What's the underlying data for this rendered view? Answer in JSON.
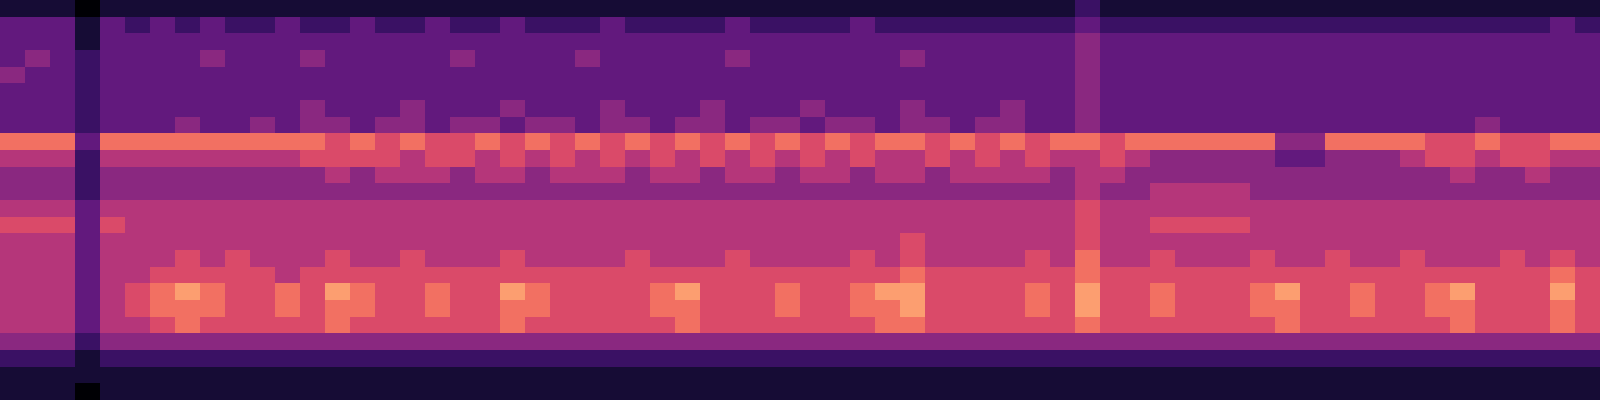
{
  "chart_data": {
    "type": "heatmap",
    "tick_labels": false,
    "zlim": [
      0,
      10
    ],
    "values": [
      [
        1,
        1,
        1,
        0,
        1,
        1,
        1,
        1,
        1,
        1,
        1,
        1,
        1,
        1,
        1,
        1,
        1,
        1,
        1,
        1,
        1,
        1,
        1,
        1,
        1,
        1,
        1,
        1,
        1,
        1,
        1,
        1,
        1,
        1,
        1,
        1,
        1,
        1,
        1,
        1,
        1,
        1,
        1,
        2,
        1,
        1,
        1,
        1,
        1,
        1,
        1,
        1,
        1,
        1,
        1,
        1,
        1,
        1,
        1,
        1,
        1,
        1,
        1,
        1
      ],
      [
        3,
        3,
        3,
        1,
        3,
        2,
        3,
        2,
        3,
        2,
        2,
        3,
        2,
        2,
        3,
        2,
        2,
        3,
        2,
        2,
        3,
        2,
        2,
        2,
        3,
        2,
        2,
        2,
        2,
        3,
        2,
        2,
        2,
        2,
        3,
        2,
        2,
        2,
        2,
        2,
        2,
        2,
        2,
        3,
        2,
        2,
        2,
        2,
        2,
        2,
        2,
        2,
        2,
        2,
        2,
        2,
        2,
        2,
        2,
        2,
        2,
        2,
        3,
        2
      ],
      [
        3,
        3,
        3,
        1,
        3,
        3,
        3,
        3,
        3,
        3,
        3,
        3,
        3,
        3,
        3,
        3,
        3,
        3,
        3,
        3,
        3,
        3,
        3,
        3,
        3,
        3,
        3,
        3,
        3,
        3,
        3,
        3,
        3,
        3,
        3,
        3,
        3,
        3,
        3,
        3,
        3,
        3,
        3,
        4,
        3,
        3,
        3,
        3,
        3,
        3,
        3,
        3,
        3,
        3,
        3,
        3,
        3,
        3,
        3,
        3,
        3,
        3,
        3,
        3
      ],
      [
        3,
        4,
        3,
        2,
        3,
        3,
        3,
        3,
        4,
        3,
        3,
        3,
        4,
        3,
        3,
        3,
        3,
        3,
        4,
        3,
        3,
        3,
        3,
        4,
        3,
        3,
        3,
        3,
        3,
        4,
        3,
        3,
        3,
        3,
        3,
        3,
        4,
        3,
        3,
        3,
        3,
        3,
        3,
        4,
        3,
        3,
        3,
        3,
        3,
        3,
        3,
        3,
        3,
        3,
        3,
        3,
        3,
        3,
        3,
        3,
        3,
        3,
        3,
        3
      ],
      [
        4,
        3,
        3,
        2,
        3,
        3,
        3,
        3,
        3,
        3,
        3,
        3,
        3,
        3,
        3,
        3,
        3,
        3,
        3,
        3,
        3,
        3,
        3,
        3,
        3,
        3,
        3,
        3,
        3,
        3,
        3,
        3,
        3,
        3,
        3,
        3,
        3,
        3,
        3,
        3,
        3,
        3,
        3,
        4,
        3,
        3,
        3,
        3,
        3,
        3,
        3,
        3,
        3,
        3,
        3,
        3,
        3,
        3,
        3,
        3,
        3,
        3,
        3,
        3
      ],
      [
        3,
        3,
        3,
        2,
        3,
        3,
        3,
        3,
        3,
        3,
        3,
        3,
        3,
        3,
        3,
        3,
        3,
        3,
        3,
        3,
        3,
        3,
        3,
        3,
        3,
        3,
        3,
        3,
        3,
        3,
        3,
        3,
        3,
        3,
        3,
        3,
        3,
        3,
        3,
        3,
        3,
        3,
        3,
        4,
        3,
        3,
        3,
        3,
        3,
        3,
        3,
        3,
        3,
        3,
        3,
        3,
        3,
        3,
        3,
        3,
        3,
        3,
        3,
        3
      ],
      [
        3,
        3,
        3,
        2,
        3,
        3,
        3,
        3,
        3,
        3,
        3,
        3,
        4,
        3,
        3,
        3,
        4,
        3,
        3,
        3,
        4,
        3,
        3,
        3,
        4,
        3,
        3,
        3,
        4,
        3,
        3,
        3,
        4,
        3,
        3,
        3,
        4,
        3,
        3,
        3,
        4,
        3,
        3,
        4,
        3,
        3,
        3,
        3,
        3,
        3,
        3,
        3,
        3,
        3,
        3,
        3,
        3,
        3,
        3,
        3,
        3,
        3,
        3,
        3
      ],
      [
        3,
        3,
        3,
        2,
        3,
        3,
        3,
        4,
        3,
        3,
        4,
        3,
        4,
        4,
        3,
        4,
        4,
        3,
        4,
        4,
        3,
        4,
        4,
        3,
        4,
        4,
        3,
        4,
        4,
        3,
        4,
        4,
        3,
        4,
        4,
        3,
        4,
        4,
        3,
        4,
        4,
        3,
        3,
        4,
        3,
        3,
        3,
        3,
        3,
        3,
        3,
        3,
        3,
        3,
        3,
        3,
        3,
        3,
        3,
        4,
        3,
        3,
        3,
        3
      ],
      [
        7,
        7,
        7,
        3,
        7,
        7,
        7,
        7,
        7,
        7,
        7,
        7,
        7,
        6,
        7,
        6,
        7,
        6,
        6,
        7,
        6,
        7,
        6,
        7,
        6,
        7,
        6,
        7,
        6,
        7,
        6,
        7,
        6,
        7,
        6,
        7,
        7,
        6,
        7,
        6,
        7,
        6,
        7,
        7,
        6,
        7,
        7,
        7,
        7,
        7,
        7,
        4,
        4,
        7,
        7,
        7,
        7,
        6,
        6,
        7,
        6,
        6,
        7,
        7
      ],
      [
        5,
        5,
        5,
        2,
        5,
        5,
        5,
        5,
        5,
        5,
        5,
        5,
        6,
        6,
        6,
        6,
        5,
        6,
        6,
        5,
        6,
        5,
        6,
        5,
        6,
        5,
        6,
        5,
        6,
        5,
        6,
        5,
        6,
        5,
        6,
        5,
        5,
        6,
        5,
        6,
        5,
        6,
        5,
        5,
        6,
        5,
        4,
        4,
        4,
        4,
        4,
        3,
        3,
        4,
        4,
        4,
        5,
        6,
        6,
        5,
        6,
        6,
        5,
        5
      ],
      [
        4,
        4,
        4,
        2,
        4,
        4,
        4,
        4,
        4,
        4,
        4,
        4,
        4,
        5,
        4,
        5,
        5,
        5,
        4,
        5,
        5,
        4,
        5,
        5,
        5,
        4,
        5,
        5,
        4,
        5,
        5,
        4,
        5,
        5,
        4,
        5,
        5,
        4,
        5,
        5,
        5,
        5,
        4,
        5,
        5,
        4,
        4,
        4,
        4,
        4,
        4,
        4,
        4,
        4,
        4,
        4,
        4,
        4,
        5,
        4,
        4,
        5,
        4,
        4
      ],
      [
        4,
        4,
        4,
        2,
        4,
        4,
        4,
        4,
        4,
        4,
        4,
        4,
        4,
        4,
        4,
        4,
        4,
        4,
        4,
        4,
        4,
        4,
        4,
        4,
        4,
        4,
        4,
        4,
        4,
        4,
        4,
        4,
        4,
        4,
        4,
        4,
        4,
        4,
        4,
        4,
        4,
        4,
        4,
        5,
        4,
        4,
        5,
        5,
        5,
        5,
        4,
        4,
        4,
        4,
        4,
        4,
        4,
        4,
        4,
        4,
        4,
        4,
        4,
        4
      ],
      [
        5,
        5,
        5,
        3,
        5,
        5,
        5,
        5,
        5,
        5,
        5,
        5,
        5,
        5,
        5,
        5,
        5,
        5,
        5,
        5,
        5,
        5,
        5,
        5,
        5,
        5,
        5,
        5,
        5,
        5,
        5,
        5,
        5,
        5,
        5,
        5,
        5,
        5,
        5,
        5,
        5,
        5,
        5,
        6,
        5,
        5,
        5,
        5,
        5,
        5,
        5,
        5,
        5,
        5,
        5,
        5,
        5,
        5,
        5,
        5,
        5,
        5,
        5,
        5
      ],
      [
        6,
        6,
        6,
        3,
        6,
        5,
        5,
        5,
        5,
        5,
        5,
        5,
        5,
        5,
        5,
        5,
        5,
        5,
        5,
        5,
        5,
        5,
        5,
        5,
        5,
        5,
        5,
        5,
        5,
        5,
        5,
        5,
        5,
        5,
        5,
        5,
        5,
        5,
        5,
        5,
        5,
        5,
        5,
        6,
        5,
        5,
        6,
        6,
        6,
        6,
        5,
        5,
        5,
        5,
        5,
        5,
        5,
        5,
        5,
        5,
        5,
        5,
        5,
        5
      ],
      [
        5,
        5,
        5,
        3,
        5,
        5,
        5,
        5,
        5,
        5,
        5,
        5,
        5,
        5,
        5,
        5,
        5,
        5,
        5,
        5,
        5,
        5,
        5,
        5,
        5,
        5,
        5,
        5,
        5,
        5,
        5,
        5,
        5,
        5,
        5,
        5,
        6,
        5,
        5,
        5,
        5,
        5,
        5,
        6,
        5,
        5,
        5,
        5,
        5,
        5,
        5,
        5,
        5,
        5,
        5,
        5,
        5,
        5,
        5,
        5,
        5,
        5,
        5,
        5
      ],
      [
        5,
        5,
        5,
        3,
        5,
        5,
        5,
        6,
        5,
        6,
        5,
        5,
        5,
        6,
        5,
        5,
        6,
        5,
        5,
        5,
        6,
        5,
        5,
        5,
        5,
        6,
        5,
        5,
        5,
        6,
        5,
        5,
        5,
        5,
        6,
        5,
        6,
        5,
        5,
        5,
        5,
        6,
        5,
        7,
        5,
        5,
        6,
        5,
        5,
        5,
        6,
        5,
        5,
        6,
        5,
        5,
        6,
        5,
        5,
        5,
        6,
        5,
        6,
        5
      ],
      [
        5,
        5,
        5,
        3,
        5,
        5,
        6,
        6,
        6,
        6,
        6,
        5,
        6,
        6,
        6,
        6,
        6,
        6,
        6,
        6,
        6,
        6,
        6,
        6,
        6,
        6,
        6,
        6,
        6,
        6,
        6,
        6,
        6,
        6,
        6,
        6,
        7,
        6,
        6,
        6,
        6,
        6,
        6,
        7,
        6,
        6,
        6,
        6,
        6,
        6,
        6,
        6,
        6,
        6,
        6,
        6,
        6,
        6,
        6,
        6,
        6,
        6,
        7,
        6
      ],
      [
        5,
        5,
        5,
        3,
        5,
        6,
        7,
        8,
        7,
        6,
        6,
        7,
        6,
        8,
        7,
        6,
        6,
        7,
        6,
        6,
        8,
        7,
        6,
        6,
        6,
        6,
        7,
        8,
        6,
        6,
        6,
        7,
        6,
        6,
        7,
        8,
        8,
        6,
        6,
        6,
        6,
        7,
        6,
        8,
        6,
        6,
        7,
        6,
        6,
        6,
        7,
        8,
        6,
        6,
        7,
        6,
        6,
        7,
        8,
        6,
        6,
        6,
        8,
        6
      ],
      [
        5,
        5,
        5,
        3,
        5,
        6,
        7,
        7,
        7,
        6,
        6,
        7,
        6,
        7,
        7,
        6,
        6,
        7,
        6,
        6,
        7,
        7,
        6,
        6,
        6,
        6,
        7,
        7,
        6,
        6,
        6,
        7,
        6,
        6,
        7,
        7,
        8,
        6,
        6,
        6,
        6,
        7,
        6,
        8,
        6,
        6,
        7,
        6,
        6,
        6,
        7,
        7,
        6,
        6,
        7,
        6,
        6,
        7,
        7,
        6,
        6,
        6,
        7,
        6
      ],
      [
        5,
        5,
        5,
        3,
        5,
        5,
        6,
        7,
        6,
        6,
        6,
        6,
        6,
        7,
        6,
        6,
        6,
        6,
        6,
        6,
        7,
        6,
        6,
        6,
        6,
        6,
        6,
        7,
        6,
        6,
        6,
        6,
        6,
        6,
        6,
        7,
        7,
        6,
        6,
        6,
        6,
        6,
        6,
        7,
        6,
        6,
        6,
        6,
        6,
        6,
        6,
        7,
        6,
        6,
        6,
        6,
        6,
        6,
        7,
        6,
        6,
        6,
        7,
        6
      ],
      [
        4,
        4,
        4,
        2,
        4,
        4,
        4,
        4,
        4,
        4,
        4,
        4,
        4,
        4,
        4,
        4,
        4,
        4,
        4,
        4,
        4,
        4,
        4,
        4,
        4,
        4,
        4,
        4,
        4,
        4,
        4,
        4,
        4,
        4,
        4,
        4,
        4,
        4,
        4,
        4,
        4,
        4,
        4,
        4,
        4,
        4,
        4,
        4,
        4,
        4,
        4,
        4,
        4,
        4,
        4,
        4,
        4,
        4,
        4,
        4,
        4,
        4,
        4,
        4
      ],
      [
        2,
        2,
        2,
        1,
        2,
        2,
        2,
        2,
        2,
        2,
        2,
        2,
        2,
        2,
        2,
        2,
        2,
        2,
        2,
        2,
        2,
        2,
        2,
        2,
        2,
        2,
        2,
        2,
        2,
        2,
        2,
        2,
        2,
        2,
        2,
        2,
        2,
        2,
        2,
        2,
        2,
        2,
        2,
        2,
        2,
        2,
        2,
        2,
        2,
        2,
        2,
        2,
        2,
        2,
        2,
        2,
        2,
        2,
        2,
        2,
        2,
        2,
        2,
        2
      ],
      [
        1,
        1,
        1,
        1,
        1,
        1,
        1,
        1,
        1,
        1,
        1,
        1,
        1,
        1,
        1,
        1,
        1,
        1,
        1,
        1,
        1,
        1,
        1,
        1,
        1,
        1,
        1,
        1,
        1,
        1,
        1,
        1,
        1,
        1,
        1,
        1,
        1,
        1,
        1,
        1,
        1,
        1,
        1,
        1,
        1,
        1,
        1,
        1,
        1,
        1,
        1,
        1,
        1,
        1,
        1,
        1,
        1,
        1,
        1,
        1,
        1,
        1,
        1,
        1
      ],
      [
        1,
        1,
        1,
        0,
        1,
        1,
        1,
        1,
        1,
        1,
        1,
        1,
        1,
        1,
        1,
        1,
        1,
        1,
        1,
        1,
        1,
        1,
        1,
        1,
        1,
        1,
        1,
        1,
        1,
        1,
        1,
        1,
        1,
        1,
        1,
        1,
        1,
        1,
        1,
        1,
        1,
        1,
        1,
        1,
        1,
        1,
        1,
        1,
        1,
        1,
        1,
        1,
        1,
        1,
        1,
        1,
        1,
        1,
        1,
        1,
        1,
        1,
        1,
        1
      ]
    ]
  }
}
